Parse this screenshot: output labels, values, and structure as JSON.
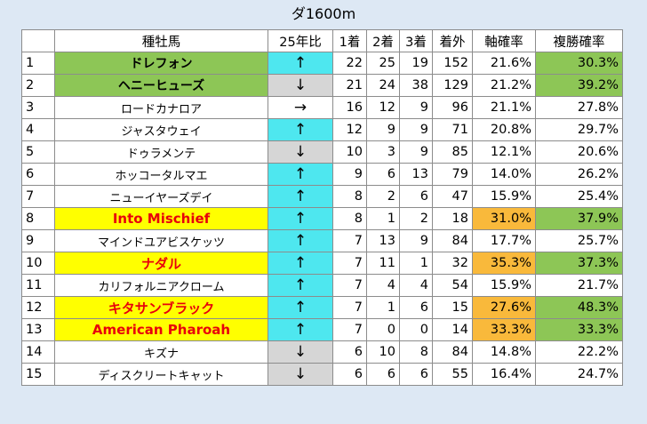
{
  "title": "ダ1600m",
  "headers": [
    "",
    "種牡馬",
    "25年比",
    "1着",
    "2着",
    "3着",
    "着外",
    "軸確率",
    "複勝確率"
  ],
  "colors": {
    "green": "#8dc656",
    "yellow": "#ffff00",
    "cyan": "#4ee7ef",
    "gray": "#d6d6d6",
    "orange": "#f9b93b",
    "red": "#d61a1a"
  },
  "icons": {
    "up": "up-arrow-icon",
    "down": "down-arrow-icon",
    "flat": "right-arrow-icon"
  },
  "rows": [
    {
      "rank": "1",
      "sire": "ドレフォン",
      "trend": "↑",
      "trend_dir": "up",
      "first": "22",
      "second": "25",
      "third": "19",
      "other": "152",
      "jiku": "21.6%",
      "fukusho": "30.3%",
      "name_style": "green",
      "jiku_style": "",
      "fukusho_style": "lgreen",
      "highlight": false
    },
    {
      "rank": "2",
      "sire": "ヘニーヒューズ",
      "trend": "↓",
      "trend_dir": "down",
      "first": "21",
      "second": "24",
      "third": "38",
      "other": "129",
      "jiku": "21.2%",
      "fukusho": "39.2%",
      "name_style": "green",
      "jiku_style": "",
      "fukusho_style": "lgreen",
      "highlight": false
    },
    {
      "rank": "3",
      "sire": "ロードカナロア",
      "trend": "→",
      "trend_dir": "flat",
      "first": "16",
      "second": "12",
      "third": "9",
      "other": "96",
      "jiku": "21.1%",
      "fukusho": "27.8%",
      "name_style": "",
      "jiku_style": "",
      "fukusho_style": "",
      "highlight": false
    },
    {
      "rank": "4",
      "sire": "ジャスタウェイ",
      "trend": "↑",
      "trend_dir": "up",
      "first": "12",
      "second": "9",
      "third": "9",
      "other": "71",
      "jiku": "20.8%",
      "fukusho": "29.7%",
      "name_style": "",
      "jiku_style": "",
      "fukusho_style": "",
      "highlight": false
    },
    {
      "rank": "5",
      "sire": "ドゥラメンテ",
      "trend": "↓",
      "trend_dir": "down",
      "first": "10",
      "second": "3",
      "third": "9",
      "other": "85",
      "jiku": "12.1%",
      "fukusho": "20.6%",
      "name_style": "",
      "jiku_style": "",
      "fukusho_style": "",
      "highlight": false
    },
    {
      "rank": "6",
      "sire": "ホッコータルマエ",
      "trend": "↑",
      "trend_dir": "up",
      "first": "9",
      "second": "6",
      "third": "13",
      "other": "79",
      "jiku": "14.0%",
      "fukusho": "26.2%",
      "name_style": "",
      "jiku_style": "",
      "fukusho_style": "",
      "highlight": false
    },
    {
      "rank": "7",
      "sire": "ニューイヤーズデイ",
      "trend": "↑",
      "trend_dir": "up",
      "first": "8",
      "second": "2",
      "third": "6",
      "other": "47",
      "jiku": "15.9%",
      "fukusho": "25.4%",
      "name_style": "",
      "jiku_style": "",
      "fukusho_style": "",
      "highlight": false
    },
    {
      "rank": "8",
      "sire": "Into Mischief",
      "trend": "↑",
      "trend_dir": "up",
      "first": "8",
      "second": "1",
      "third": "2",
      "other": "18",
      "jiku": "31.0%",
      "fukusho": "37.9%",
      "name_style": "yellow",
      "jiku_style": "orange",
      "fukusho_style": "lgreen",
      "highlight": true
    },
    {
      "rank": "9",
      "sire": "マインドユアビスケッツ",
      "trend": "↑",
      "trend_dir": "up",
      "first": "7",
      "second": "13",
      "third": "9",
      "other": "84",
      "jiku": "17.7%",
      "fukusho": "25.7%",
      "name_style": "",
      "jiku_style": "",
      "fukusho_style": "",
      "highlight": false
    },
    {
      "rank": "10",
      "sire": "ナダル",
      "trend": "↑",
      "trend_dir": "up",
      "first": "7",
      "second": "11",
      "third": "1",
      "other": "32",
      "jiku": "35.3%",
      "fukusho": "37.3%",
      "name_style": "yellow",
      "jiku_style": "orange",
      "fukusho_style": "lgreen",
      "highlight": true
    },
    {
      "rank": "11",
      "sire": "カリフォルニアクローム",
      "trend": "↑",
      "trend_dir": "up",
      "first": "7",
      "second": "4",
      "third": "4",
      "other": "54",
      "jiku": "15.9%",
      "fukusho": "21.7%",
      "name_style": "",
      "jiku_style": "",
      "fukusho_style": "",
      "highlight": false
    },
    {
      "rank": "12",
      "sire": "キタサンブラック",
      "trend": "↑",
      "trend_dir": "up",
      "first": "7",
      "second": "1",
      "third": "6",
      "other": "15",
      "jiku": "27.6%",
      "fukusho": "48.3%",
      "name_style": "yellow",
      "jiku_style": "orange",
      "fukusho_style": "lgreen",
      "highlight": true
    },
    {
      "rank": "13",
      "sire": "American Pharoah",
      "trend": "↑",
      "trend_dir": "up",
      "first": "7",
      "second": "0",
      "third": "0",
      "other": "14",
      "jiku": "33.3%",
      "fukusho": "33.3%",
      "name_style": "yellow",
      "jiku_style": "orange",
      "fukusho_style": "lgreen",
      "highlight": true
    },
    {
      "rank": "14",
      "sire": "キズナ",
      "trend": "↓",
      "trend_dir": "down",
      "first": "6",
      "second": "10",
      "third": "8",
      "other": "84",
      "jiku": "14.8%",
      "fukusho": "22.2%",
      "name_style": "",
      "jiku_style": "",
      "fukusho_style": "",
      "highlight": false
    },
    {
      "rank": "15",
      "sire": "ディスクリートキャット",
      "trend": "↓",
      "trend_dir": "down",
      "first": "6",
      "second": "6",
      "third": "6",
      "other": "55",
      "jiku": "16.4%",
      "fukusho": "24.7%",
      "name_style": "",
      "jiku_style": "",
      "fukusho_style": "",
      "highlight": false
    }
  ]
}
